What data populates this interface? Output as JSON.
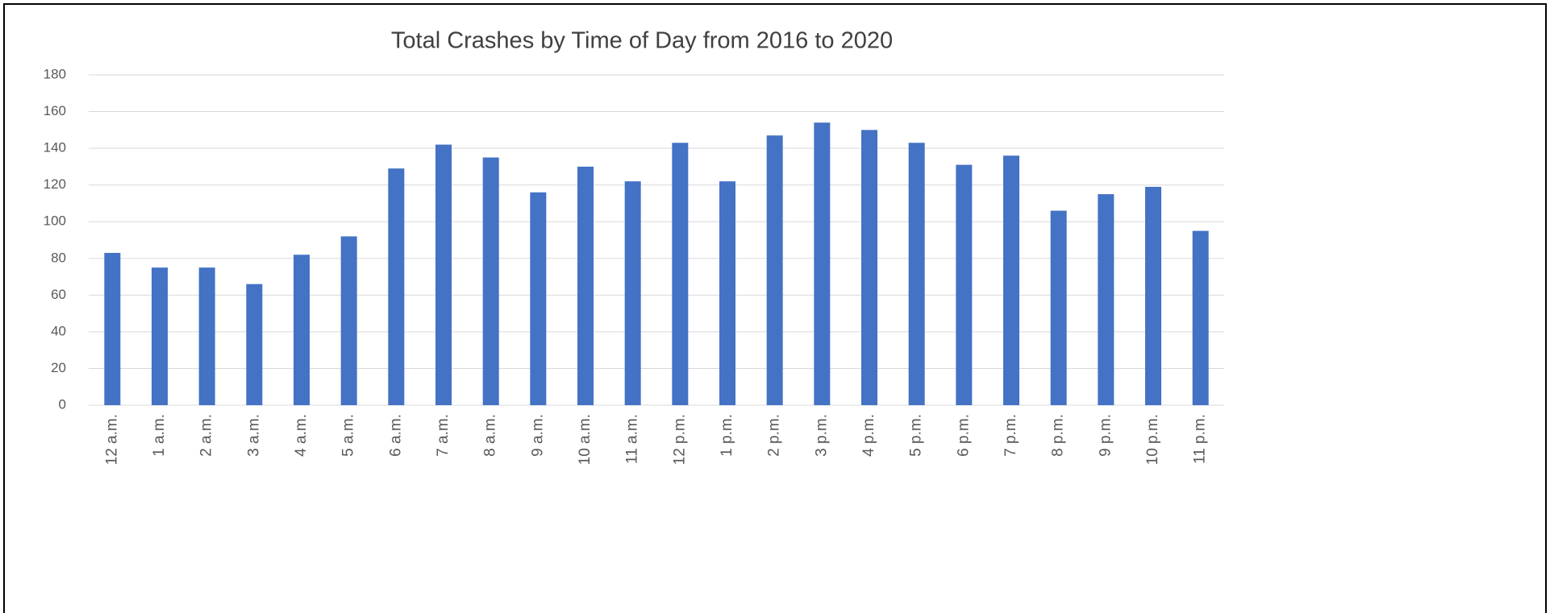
{
  "chart_data": {
    "type": "bar",
    "title": "Total Crashes by Time of Day from 2016 to 2020",
    "categories": [
      "12 a.m.",
      "1 a.m.",
      "2 a.m.",
      "3 a.m.",
      "4 a.m.",
      "5 a.m.",
      "6 a.m.",
      "7 a.m.",
      "8 a.m.",
      "9 a.m.",
      "10 a.m.",
      "11 a.m.",
      "12 p.m.",
      "1 p.m.",
      "2 p.m.",
      "3 p.m.",
      "4 p.m.",
      "5 p.m.",
      "6 p.m.",
      "7 p.m.",
      "8 p.m.",
      "9 p.m.",
      "10 p.m.",
      "11 p.m."
    ],
    "values": [
      83,
      75,
      75,
      66,
      82,
      92,
      129,
      142,
      135,
      116,
      130,
      122,
      143,
      122,
      147,
      154,
      150,
      143,
      131,
      136,
      106,
      115,
      119,
      95
    ],
    "color": "#4472c4",
    "ylim": [
      0,
      180
    ],
    "yticks": [
      0,
      20,
      40,
      60,
      80,
      100,
      120,
      140,
      160,
      180
    ],
    "grid": true
  }
}
